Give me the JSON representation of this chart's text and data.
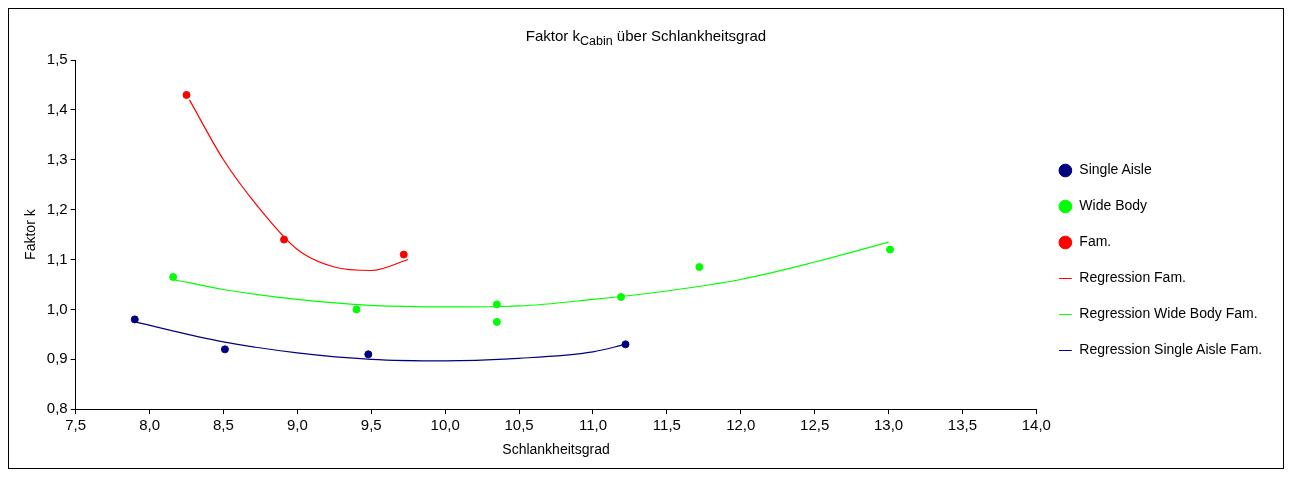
{
  "chart_data": {
    "type": "scatter",
    "title": "Faktor k$_{Cabin}$ über Schlankheitsgrad",
    "xlabel": "Schlankheitsgrad",
    "ylabel": "Faktor k",
    "xlim": [
      7.5,
      14.0
    ],
    "xticks": [
      {
        "value": 7.5,
        "label": "7,5"
      },
      {
        "value": 8,
        "label": "8,0"
      },
      {
        "value": 8.5,
        "label": "8,5"
      },
      {
        "value": 9,
        "label": "9,0"
      },
      {
        "value": 9.5,
        "label": "9,5"
      },
      {
        "value": 10,
        "label": "10,0"
      },
      {
        "value": 10.5,
        "label": "10,5"
      },
      {
        "value": 11,
        "label": "11,0"
      },
      {
        "value": 11.5,
        "label": "11,5"
      },
      {
        "value": 12,
        "label": "12,0"
      },
      {
        "value": 12.5,
        "label": "12,5"
      },
      {
        "value": 13,
        "label": "13,0"
      },
      {
        "value": 13.5,
        "label": "13,5"
      },
      {
        "value": 14,
        "label": "14,0"
      }
    ],
    "ylim": [
      0.8,
      1.5
    ],
    "yticks": [
      {
        "value": 0.8,
        "label": "0,8"
      },
      {
        "value": 0.9,
        "label": "0,9"
      },
      {
        "value": 1.0,
        "label": "1,0"
      },
      {
        "value": 1.1,
        "label": "1,1"
      },
      {
        "value": 1.2,
        "label": "1,2"
      },
      {
        "value": 1.3,
        "label": "1,3"
      },
      {
        "value": 1.4,
        "label": "1,4"
      },
      {
        "value": 1.5,
        "label": "1,5"
      }
    ],
    "grid": false,
    "legend": "right",
    "series": [
      {
        "name": "Single Aisle",
        "type": "scatter",
        "marker": "circle",
        "color": "#000080",
        "x": [
          7.9,
          8.51,
          9.48,
          11.22
        ],
        "values": [
          0.98,
          0.92,
          0.91,
          0.93
        ]
      },
      {
        "name": "Wide Body",
        "type": "scatter",
        "marker": "circle",
        "color": "#00ff00",
        "x": [
          8.16,
          9.4,
          10.35,
          10.35,
          11.19,
          11.72,
          13.01
        ],
        "values": [
          1.065,
          1.0,
          1.01,
          0.975,
          1.025,
          1.085,
          1.12
        ]
      },
      {
        "name": "Fam.",
        "type": "scatter",
        "marker": "circle",
        "color": "#ff0000",
        "x": [
          8.25,
          8.91,
          9.72
        ],
        "values": [
          1.43,
          1.14,
          1.11
        ]
      },
      {
        "name": "Regression Fam.",
        "type": "line",
        "marker": "none",
        "color": "#ff0000",
        "x": [
          8.27,
          8.5,
          8.75,
          9.0,
          9.25,
          9.5,
          9.75
        ],
        "values": [
          1.42,
          1.3,
          1.2,
          1.12,
          1.085,
          1.078,
          1.1
        ]
      },
      {
        "name": "Regression Wide Body Fam.",
        "type": "line",
        "marker": "none",
        "color": "#00ff00",
        "x": [
          8.16,
          8.5,
          9.0,
          9.5,
          10.0,
          10.5,
          11.0,
          11.5,
          12.0,
          12.5,
          13.0
        ],
        "values": [
          1.06,
          1.04,
          1.02,
          1.008,
          1.005,
          1.007,
          1.02,
          1.037,
          1.06,
          1.095,
          1.135
        ]
      },
      {
        "name": "Regression Single Aisle Fam.",
        "type": "line",
        "marker": "none",
        "color": "#000080",
        "x": [
          7.9,
          8.5,
          9.0,
          9.5,
          10.0,
          10.5,
          11.0,
          11.22
        ],
        "values": [
          0.975,
          0.935,
          0.913,
          0.9,
          0.897,
          0.902,
          0.915,
          0.93
        ]
      }
    ]
  }
}
